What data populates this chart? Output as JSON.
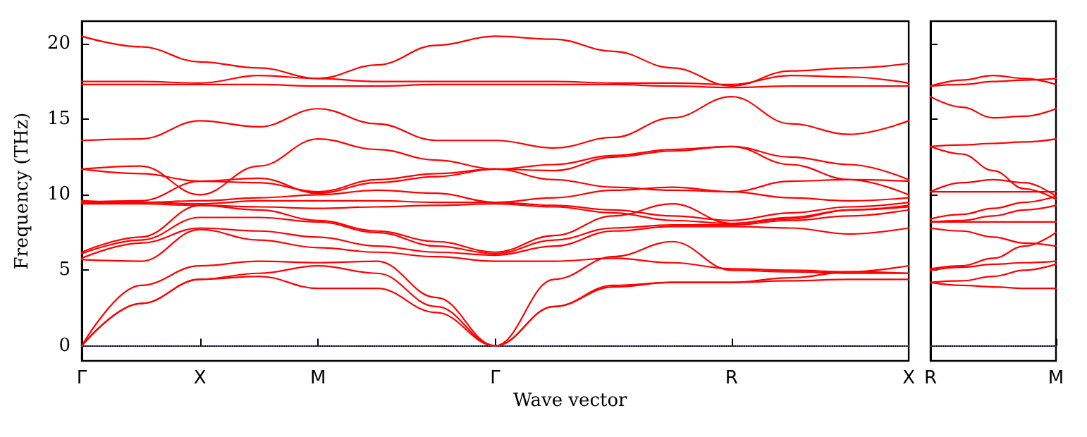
{
  "chart_data": [
    {
      "type": "line",
      "ylabel": "Frequency (THz)",
      "xlabel": "Wave vector",
      "marker": "none",
      "line_style": "solid",
      "categories": [
        "Γ",
        null,
        "X",
        null,
        "M",
        null,
        null,
        "Γ",
        null,
        null,
        null,
        "R",
        null,
        null,
        "X"
      ],
      "ylim": [
        -1,
        21.5
      ],
      "yticks": [
        0,
        5,
        10,
        15,
        20
      ],
      "ref_lines": [
        {
          "axis": "y",
          "value": 0,
          "color": "#6070e0",
          "line_style": "dotted"
        }
      ],
      "series": [
        {
          "color": "#ff0000",
          "values": [
            20.5,
            19.8,
            18.8,
            18.4,
            17.7,
            18.6,
            19.9,
            20.5,
            20.3,
            19.5,
            18.4,
            17.2,
            18.2,
            18.4,
            18.7
          ]
        },
        {
          "color": "#ff0000",
          "values": [
            17.5,
            17.5,
            17.4,
            17.9,
            17.7,
            17.5,
            17.5,
            17.5,
            17.5,
            17.4,
            17.4,
            17.3,
            17.9,
            17.8,
            17.4
          ]
        },
        {
          "color": "#ff0000",
          "values": [
            17.3,
            17.3,
            17.3,
            17.3,
            17.2,
            17.2,
            17.3,
            17.3,
            17.3,
            17.3,
            17.2,
            17.1,
            17.2,
            17.2,
            17.2
          ]
        },
        {
          "color": "#ff0000",
          "values": [
            13.6,
            13.7,
            14.9,
            14.5,
            15.7,
            14.7,
            13.6,
            13.6,
            13.1,
            13.8,
            15.1,
            16.5,
            14.7,
            14.0,
            14.9
          ]
        },
        {
          "color": "#ff0000",
          "values": [
            11.7,
            11.9,
            10.0,
            11.9,
            13.7,
            13.0,
            12.3,
            11.7,
            12.0,
            12.6,
            13.0,
            13.2,
            12.5,
            12.0,
            11.0
          ]
        },
        {
          "color": "#ff0000",
          "values": [
            11.7,
            11.4,
            10.9,
            10.8,
            10.2,
            11.0,
            11.4,
            11.7,
            11.6,
            12.5,
            12.9,
            13.2,
            12.0,
            11.0,
            10.0
          ]
        },
        {
          "color": "#ff0000",
          "values": [
            9.5,
            9.6,
            10.9,
            11.1,
            10.1,
            10.8,
            11.2,
            11.7,
            11.0,
            10.5,
            10.3,
            10.2,
            10.9,
            11.0,
            10.9
          ]
        },
        {
          "color": "#ff0000",
          "values": [
            9.6,
            9.5,
            9.6,
            9.8,
            10.0,
            10.3,
            10.1,
            9.5,
            9.8,
            10.3,
            10.5,
            10.2,
            9.8,
            9.6,
            9.8
          ]
        },
        {
          "color": "#ff0000",
          "values": [
            9.5,
            9.5,
            9.4,
            9.6,
            9.6,
            9.6,
            9.5,
            9.5,
            9.3,
            9.0,
            8.6,
            8.3,
            8.8,
            9.2,
            9.5
          ]
        },
        {
          "color": "#ff0000",
          "values": [
            9.4,
            9.4,
            9.3,
            9.2,
            9.1,
            9.2,
            9.3,
            9.4,
            9.2,
            8.8,
            8.3,
            8.1,
            8.5,
            9.0,
            9.2
          ]
        },
        {
          "color": "#ff0000",
          "values": [
            6.2,
            7.2,
            9.3,
            9.0,
            8.3,
            7.6,
            6.9,
            6.2,
            7.3,
            8.6,
            9.4,
            8.1,
            8.4,
            9.0,
            9.3
          ]
        },
        {
          "color": "#ff0000",
          "values": [
            6.1,
            7.0,
            8.5,
            8.5,
            8.2,
            7.5,
            6.6,
            6.1,
            7.0,
            7.8,
            8.0,
            8.0,
            8.3,
            8.6,
            9.0
          ]
        },
        {
          "color": "#ff0000",
          "values": [
            5.8,
            6.8,
            7.8,
            7.6,
            7.2,
            6.6,
            6.2,
            6.0,
            6.6,
            7.6,
            7.9,
            7.9,
            7.8,
            7.4,
            7.8
          ]
        },
        {
          "color": "#ff0000",
          "values": [
            5.7,
            5.6,
            7.7,
            7.0,
            6.5,
            6.2,
            5.9,
            5.6,
            5.6,
            5.8,
            5.5,
            5.1,
            5.0,
            4.9,
            4.8
          ]
        },
        {
          "color": "#ff0000",
          "values": [
            0,
            4.0,
            5.3,
            5.6,
            5.5,
            5.6,
            3.2,
            0,
            4.4,
            5.9,
            6.9,
            5.0,
            4.9,
            4.8,
            4.8
          ]
        },
        {
          "color": "#ff0000",
          "values": [
            0,
            2.8,
            4.4,
            4.6,
            3.8,
            3.8,
            2.2,
            0,
            2.6,
            3.9,
            4.2,
            4.2,
            4.3,
            4.4,
            4.4
          ]
        },
        {
          "color": "#ff0000",
          "values": [
            0,
            2.8,
            4.4,
            4.8,
            5.3,
            4.8,
            2.6,
            0,
            2.6,
            4.0,
            4.2,
            4.2,
            4.5,
            4.9,
            5.3
          ]
        }
      ]
    },
    {
      "type": "line",
      "marker": "none",
      "line_style": "solid",
      "tick_labels": "x",
      "categories": [
        "R",
        null,
        null,
        null,
        "M"
      ],
      "ylim": [
        -1,
        21.5
      ],
      "yticks": [
        0,
        5,
        10,
        15,
        20
      ],
      "ref_lines": [
        {
          "axis": "y",
          "value": 0,
          "color": "#6070e0",
          "line_style": "dotted"
        }
      ],
      "series": [
        {
          "color": "#ff0000",
          "values": [
            17.2,
            17.6,
            17.9,
            17.7,
            17.3
          ]
        },
        {
          "color": "#ff0000",
          "values": [
            17.2,
            17.3,
            17.5,
            17.6,
            17.7
          ]
        },
        {
          "color": "#ff0000",
          "values": [
            16.5,
            15.8,
            15.1,
            15.2,
            15.7
          ]
        },
        {
          "color": "#ff0000",
          "values": [
            13.2,
            13.3,
            13.4,
            13.5,
            13.7
          ]
        },
        {
          "color": "#ff0000",
          "values": [
            13.2,
            12.7,
            11.6,
            10.4,
            9.7
          ]
        },
        {
          "color": "#ff0000",
          "values": [
            10.2,
            10.8,
            11.0,
            10.8,
            9.9
          ]
        },
        {
          "color": "#ff0000",
          "values": [
            10.2,
            10.2,
            10.2,
            10.2,
            10.2
          ]
        },
        {
          "color": "#ff0000",
          "values": [
            8.4,
            8.7,
            9.1,
            9.5,
            9.9
          ]
        },
        {
          "color": "#ff0000",
          "values": [
            8.2,
            8.3,
            8.6,
            9.0,
            9.3
          ]
        },
        {
          "color": "#ff0000",
          "values": [
            8.2,
            8.2,
            8.2,
            8.2,
            8.2
          ]
        },
        {
          "color": "#ff0000",
          "values": [
            7.8,
            7.6,
            7.2,
            6.8,
            6.6
          ]
        },
        {
          "color": "#ff0000",
          "values": [
            5.1,
            5.3,
            5.8,
            6.6,
            7.5
          ]
        },
        {
          "color": "#ff0000",
          "values": [
            5.0,
            5.2,
            5.4,
            5.5,
            5.6
          ]
        },
        {
          "color": "#ff0000",
          "values": [
            4.2,
            4.3,
            4.6,
            5.0,
            5.4
          ]
        },
        {
          "color": "#ff0000",
          "values": [
            4.2,
            4.0,
            3.9,
            3.8,
            3.8
          ]
        }
      ]
    }
  ]
}
